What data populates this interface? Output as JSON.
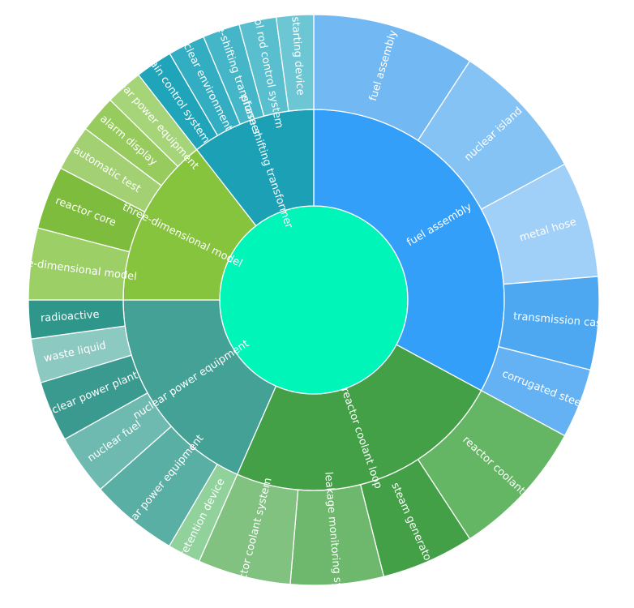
{
  "chart_data": {
    "type": "sunburst",
    "colors": {
      "center": "#00F5B9",
      "fuel_assembly": "#349FF8",
      "reactor_coolant_loop": "#43A047",
      "nuclear_power_equipment": "#43A196",
      "three_dimensional_model": "#85C43C",
      "phase_shifting_transformer": "#1BA0B6"
    },
    "center": {
      "label": ""
    },
    "groups": [
      {
        "name": "fuel assembly",
        "color": "#349FF8",
        "value": 25,
        "children": [
          {
            "name": "fuel assembly",
            "value": 7,
            "color": "#72B9F3"
          },
          {
            "name": "nuclear island",
            "value": 6,
            "color": "#86C3F5"
          },
          {
            "name": "metal hose",
            "value": 5,
            "color": "#A0CFF7"
          },
          {
            "name": "transmission case",
            "label": "transmission cas",
            "value": 4,
            "color": "#4EA8F1"
          },
          {
            "name": "corrugated steel",
            "label": "corrugated stee",
            "value": 3,
            "color": "#64B2F3"
          }
        ]
      },
      {
        "name": "reactor coolant loop",
        "color": "#43A047",
        "value": 18,
        "children": [
          {
            "name": "reactor coolant",
            "value": 6,
            "color": "#64B564"
          },
          {
            "name": "steam generator",
            "label": "steam generator",
            "value": 4,
            "color": "#43A047"
          },
          {
            "name": "leakage monitoring system",
            "value": 4,
            "color": "#6DB86D"
          },
          {
            "name": "reactor coolant system",
            "value": 4,
            "color": "#81C281"
          }
        ]
      },
      {
        "name": "nuclear power equipment",
        "color": "#43A196",
        "value": 14,
        "children": [
          {
            "name": "retention device",
            "value": 1.2,
            "color": "#90D19C"
          },
          {
            "name": "nuclear power equipment",
            "value": 3.2,
            "color": "#5AAFA4"
          },
          {
            "name": "nuclear fuel",
            "value": 2.2,
            "color": "#6FBAB0"
          },
          {
            "name": "nuclear power plant",
            "value": 2.2,
            "color": "#3A9A8F"
          },
          {
            "name": "waste liquid",
            "value": 1.6,
            "color": "#8CC9C1"
          },
          {
            "name": "radioactive",
            "value": 1.4,
            "color": "#2E968A"
          }
        ]
      },
      {
        "name": "three-dimensional model",
        "color": "#85C43C",
        "value": 11,
        "children": [
          {
            "name": "three-dimensional model",
            "value": 2.5,
            "color": "#9CCF66"
          },
          {
            "name": "reactor core",
            "value": 2.2,
            "color": "#7EBC3D"
          },
          {
            "name": "automatic test",
            "value": 1.6,
            "color": "#A2D072"
          },
          {
            "name": "alarm display",
            "value": 1.3,
            "color": "#97CB5E"
          },
          {
            "name": "nuclear power equipment",
            "value": 1.3,
            "color": "#A6D478"
          }
        ]
      },
      {
        "name": "phase-shifting transformer",
        "color": "#1BA0B6",
        "value": 8,
        "children": [
          {
            "name": "main control system",
            "value": 1.2,
            "color": "#1FA4BA"
          },
          {
            "name": "nuclear environment",
            "value": 1.2,
            "color": "#33ADC1"
          },
          {
            "name": "phase-shifting transformer",
            "value": 1.2,
            "color": "#45B6C7"
          },
          {
            "name": "control rod control system",
            "value": 1.2,
            "color": "#59BECD"
          },
          {
            "name": "starting device",
            "value": 1.2,
            "color": "#6CC6D3"
          }
        ]
      }
    ]
  }
}
